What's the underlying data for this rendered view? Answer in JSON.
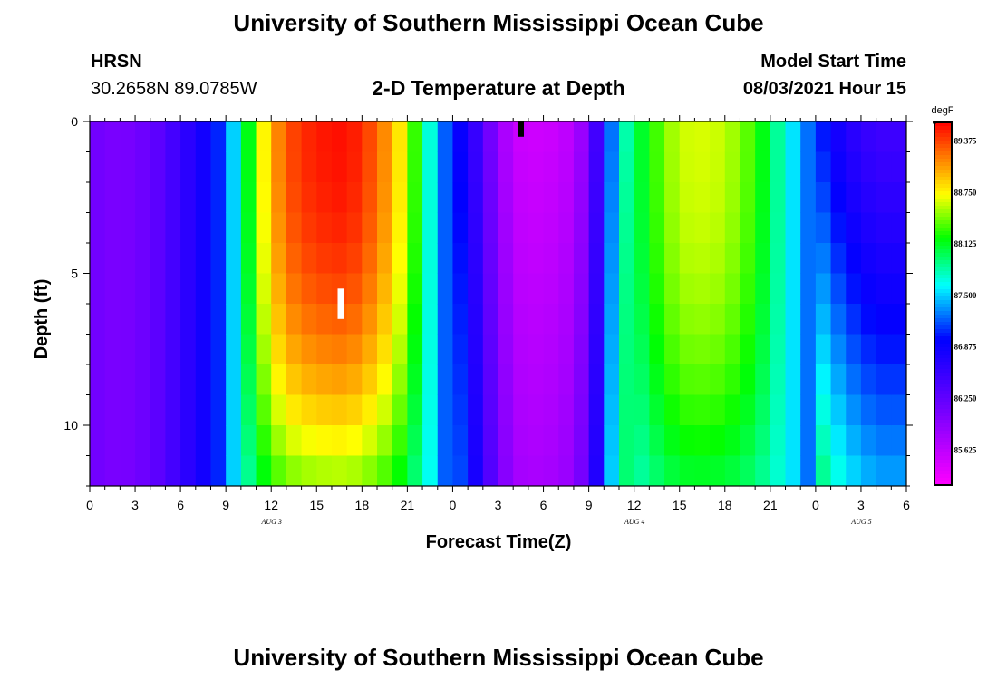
{
  "header": {
    "title": "University of Southern Mississippi Ocean Cube",
    "footer_title": "University of Southern Mississippi Ocean Cube",
    "station": "HRSN",
    "coords": "30.2658N  89.0785W",
    "model_start_label": "Model Start Time",
    "model_start_value": "08/03/2021 Hour 15"
  },
  "chart_data": {
    "type": "heatmap",
    "title": "2-D Temperature at Depth",
    "xlabel": "Forecast Time(Z)",
    "ylabel": "Depth (ft)",
    "x_hours_range": [
      0,
      54
    ],
    "depth_range_ft": [
      0,
      12
    ],
    "x_ticks": [
      {
        "h": 0,
        "label": "0"
      },
      {
        "h": 3,
        "label": "3"
      },
      {
        "h": 6,
        "label": "6"
      },
      {
        "h": 9,
        "label": "9"
      },
      {
        "h": 12,
        "label": "12"
      },
      {
        "h": 15,
        "label": "15"
      },
      {
        "h": 18,
        "label": "18"
      },
      {
        "h": 21,
        "label": "21"
      },
      {
        "h": 24,
        "label": "0"
      },
      {
        "h": 27,
        "label": "3"
      },
      {
        "h": 30,
        "label": "6"
      },
      {
        "h": 33,
        "label": "9"
      },
      {
        "h": 36,
        "label": "12"
      },
      {
        "h": 39,
        "label": "15"
      },
      {
        "h": 42,
        "label": "18"
      },
      {
        "h": 45,
        "label": "21"
      },
      {
        "h": 48,
        "label": "0"
      },
      {
        "h": 51,
        "label": "3"
      },
      {
        "h": 54,
        "label": "6"
      }
    ],
    "day_labels": [
      {
        "h": 12,
        "label": "AUG 3"
      },
      {
        "h": 36,
        "label": "AUG 4"
      },
      {
        "h": 51,
        "label": "AUG 5"
      }
    ],
    "y_ticks": [
      {
        "depth": 0,
        "label": "0"
      },
      {
        "depth": 5,
        "label": "5"
      },
      {
        "depth": 10,
        "label": "10"
      }
    ],
    "colorbar": {
      "unit": "degF",
      "min": 85.2,
      "max": 89.6,
      "labels": [
        "89.375",
        "88.750",
        "88.125",
        "87.500",
        "86.875",
        "86.250",
        "85.625"
      ]
    },
    "grid": {
      "time_step_h": 1,
      "depth_step_ft": 1,
      "n_layers": 12,
      "min_temp_profile": {
        "hours": [
          0,
          2,
          4,
          6,
          7,
          8,
          9,
          10,
          11,
          12,
          13,
          14,
          15,
          16,
          17,
          18,
          19,
          20,
          21,
          22,
          23,
          24,
          25,
          26,
          28,
          30,
          32,
          33,
          34,
          35,
          36,
          37,
          38,
          39,
          40,
          42,
          44,
          45,
          46,
          47,
          48,
          49,
          50,
          51,
          52,
          54
        ],
        "temps": [
          86.15,
          86.05,
          86.2,
          86.55,
          86.75,
          86.9,
          87.2,
          87.8,
          88.5,
          89.0,
          89.3,
          89.45,
          89.5,
          89.55,
          89.55,
          89.45,
          89.25,
          89.0,
          88.6,
          88.0,
          87.4,
          87.0,
          86.8,
          86.3,
          85.55,
          85.5,
          85.65,
          86.05,
          86.9,
          87.6,
          88.0,
          88.2,
          88.45,
          88.6,
          88.65,
          88.6,
          88.3,
          88.0,
          87.7,
          87.4,
          87.1,
          86.9,
          86.7,
          86.6,
          86.5,
          86.5
        ]
      }
    },
    "markers": [
      {
        "h": 28.5,
        "depth_from": 0,
        "depth_to": 0.5,
        "color": "#000000"
      },
      {
        "h": 16.6,
        "depth_from": 5.5,
        "depth_to": 6.5,
        "color": "#ffffff"
      }
    ]
  }
}
